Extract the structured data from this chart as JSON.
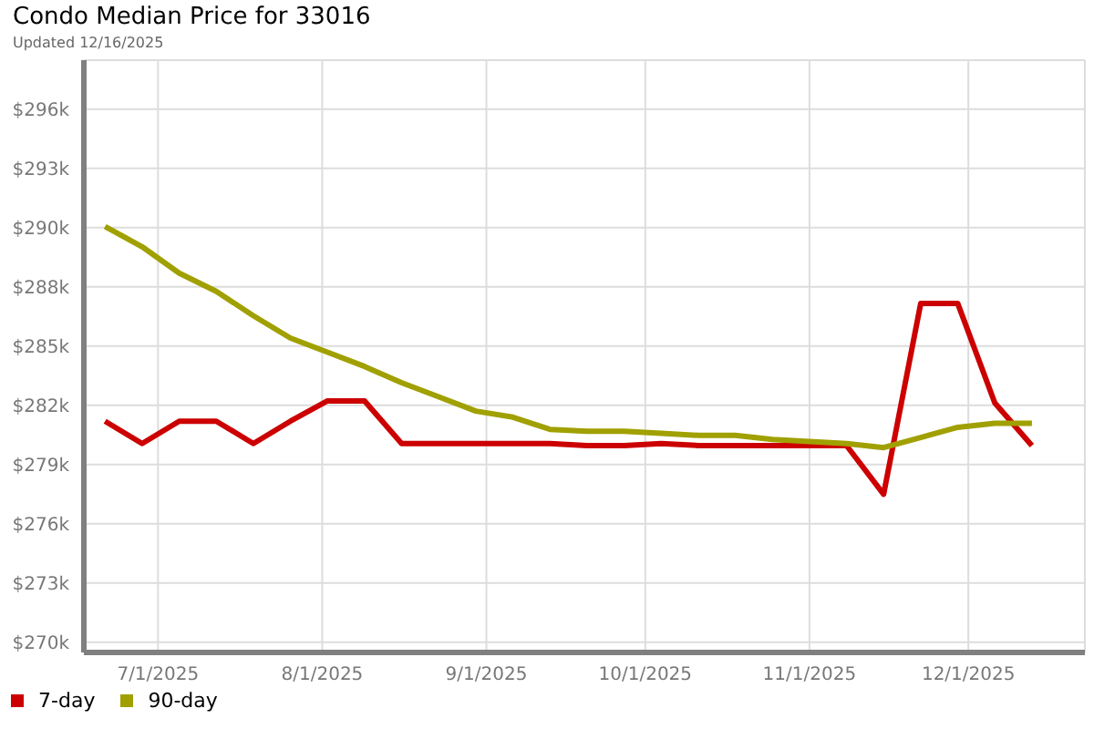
{
  "chart_data": {
    "type": "line",
    "title": "Condo Median Price for 33016",
    "subtitle": "Updated 12/16/2025",
    "x": [
      "2025-06-21",
      "2025-06-28",
      "2025-07-05",
      "2025-07-12",
      "2025-07-19",
      "2025-07-26",
      "2025-08-02",
      "2025-08-09",
      "2025-08-16",
      "2025-08-23",
      "2025-08-30",
      "2025-09-06",
      "2025-09-13",
      "2025-09-20",
      "2025-09-27",
      "2025-10-04",
      "2025-10-11",
      "2025-10-18",
      "2025-10-25",
      "2025-11-01",
      "2025-11-08",
      "2025-11-15",
      "2025-11-22",
      "2025-11-29",
      "2025-12-06",
      "2025-12-13"
    ],
    "series": [
      {
        "name": "7-day",
        "color": "#cc0000",
        "values": [
          280.9,
          279.8,
          280.9,
          280.9,
          279.8,
          280.9,
          281.9,
          281.9,
          279.8,
          279.8,
          279.8,
          279.8,
          279.8,
          279.7,
          279.7,
          279.8,
          279.7,
          279.7,
          279.7,
          279.7,
          279.7,
          277.3,
          286.7,
          286.7,
          281.8,
          279.7
        ]
      },
      {
        "name": "90-day",
        "color": "#a0a000",
        "values": [
          290.5,
          289.5,
          288.2,
          287.3,
          286.1,
          285.0,
          284.3,
          283.6,
          282.8,
          282.1,
          281.4,
          281.1,
          280.5,
          280.4,
          280.4,
          280.3,
          280.2,
          280.2,
          280.0,
          279.9,
          279.8,
          279.6,
          280.1,
          280.6,
          280.8,
          280.8
        ]
      }
    ],
    "xlim": [
      "2025-06-17",
      "2025-12-23"
    ],
    "xticks": [
      {
        "value": "2025-07-01",
        "label": "7/1/2025"
      },
      {
        "value": "2025-08-01",
        "label": "8/1/2025"
      },
      {
        "value": "2025-09-01",
        "label": "9/1/2025"
      },
      {
        "value": "2025-10-01",
        "label": "10/1/2025"
      },
      {
        "value": "2025-11-01",
        "label": "11/1/2025"
      },
      {
        "value": "2025-12-01",
        "label": "12/1/2025"
      }
    ],
    "ylim": [
      269.5,
      298.7
    ],
    "yticks": [
      {
        "value": 270,
        "label": "$270k"
      },
      {
        "value": 272.92,
        "label": "$273k"
      },
      {
        "value": 275.84,
        "label": "$276k"
      },
      {
        "value": 278.76,
        "label": "$279k"
      },
      {
        "value": 281.68,
        "label": "$282k"
      },
      {
        "value": 284.6,
        "label": "$285k"
      },
      {
        "value": 287.52,
        "label": "$288k"
      },
      {
        "value": 290.44,
        "label": "$290k"
      },
      {
        "value": 293.36,
        "label": "$293k"
      },
      {
        "value": 296.28,
        "label": "$296k"
      }
    ],
    "grid": true,
    "legend": "bottom left",
    "marker": "none",
    "line_style": "solid"
  }
}
